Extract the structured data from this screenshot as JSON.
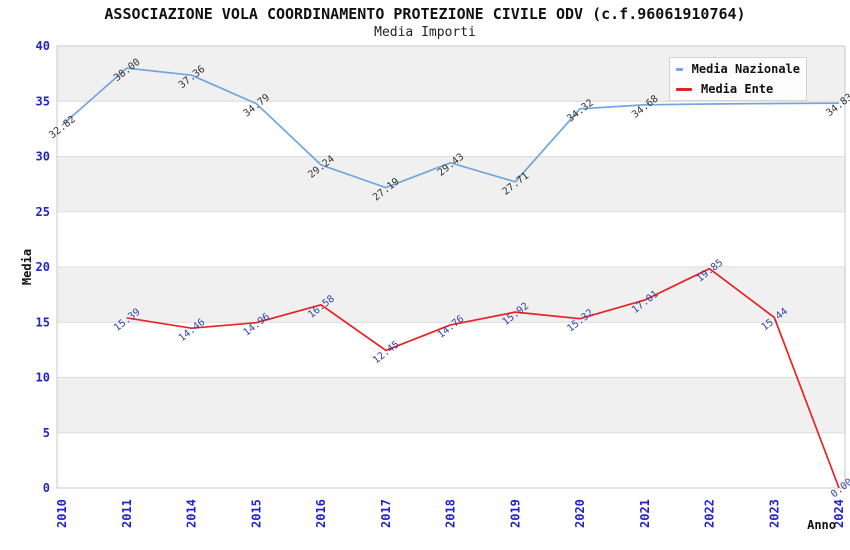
{
  "header": {
    "title": "ASSOCIAZIONE VOLA COORDINAMENTO PROTEZIONE CIVILE ODV (c.f.96061910764)",
    "subtitle": "Media Importi"
  },
  "colors": {
    "band_gray": "#f0f0f0",
    "grid_line": "#dcdcdc",
    "plot_border": "#c9c9c9",
    "tick_label_blue": "#2222cc",
    "axis_title_black": "#111111"
  },
  "chart_data": {
    "type": "line",
    "title": "ASSOCIAZIONE VOLA COORDINAMENTO PROTEZIONE CIVILE ODV (c.f.96061910764)",
    "subtitle": "Media Importi",
    "xlabel": "Anno",
    "ylabel": "Media",
    "ylim": [
      0,
      40
    ],
    "ytick_step": 5,
    "grid": "horizontal-bands",
    "legend_position": "top-right",
    "categories": [
      "2010",
      "2011",
      "2014",
      "2015",
      "2016",
      "2017",
      "2018",
      "2019",
      "2020",
      "2021",
      "2022",
      "2023",
      "2024"
    ],
    "series": [
      {
        "name": "Media Nazionale",
        "color": "#72a5dc",
        "label_color": "#333333",
        "values": [
          32.82,
          38.0,
          37.36,
          34.79,
          29.24,
          27.19,
          29.43,
          27.71,
          34.32,
          34.68,
          34.75,
          34.8,
          34.83
        ],
        "labels": [
          "32.82",
          "38.00",
          "37.36",
          "34.79",
          "29.24",
          "27.19",
          "29.43",
          "27.71",
          "34.32",
          "34.68",
          null,
          null,
          "34.83"
        ]
      },
      {
        "name": "Media Ente",
        "color": "#e82222",
        "label_color": "#3344aa",
        "values": [
          null,
          15.39,
          14.46,
          14.96,
          16.58,
          12.45,
          14.76,
          15.92,
          15.32,
          17.01,
          19.85,
          15.44,
          0.0
        ],
        "labels": [
          null,
          "15.39",
          "14.46",
          "14.96",
          "16.58",
          "12.45",
          "14.76",
          "15.92",
          "15.32",
          "17.01",
          "19.85",
          "15.44",
          "0.00"
        ]
      }
    ]
  }
}
